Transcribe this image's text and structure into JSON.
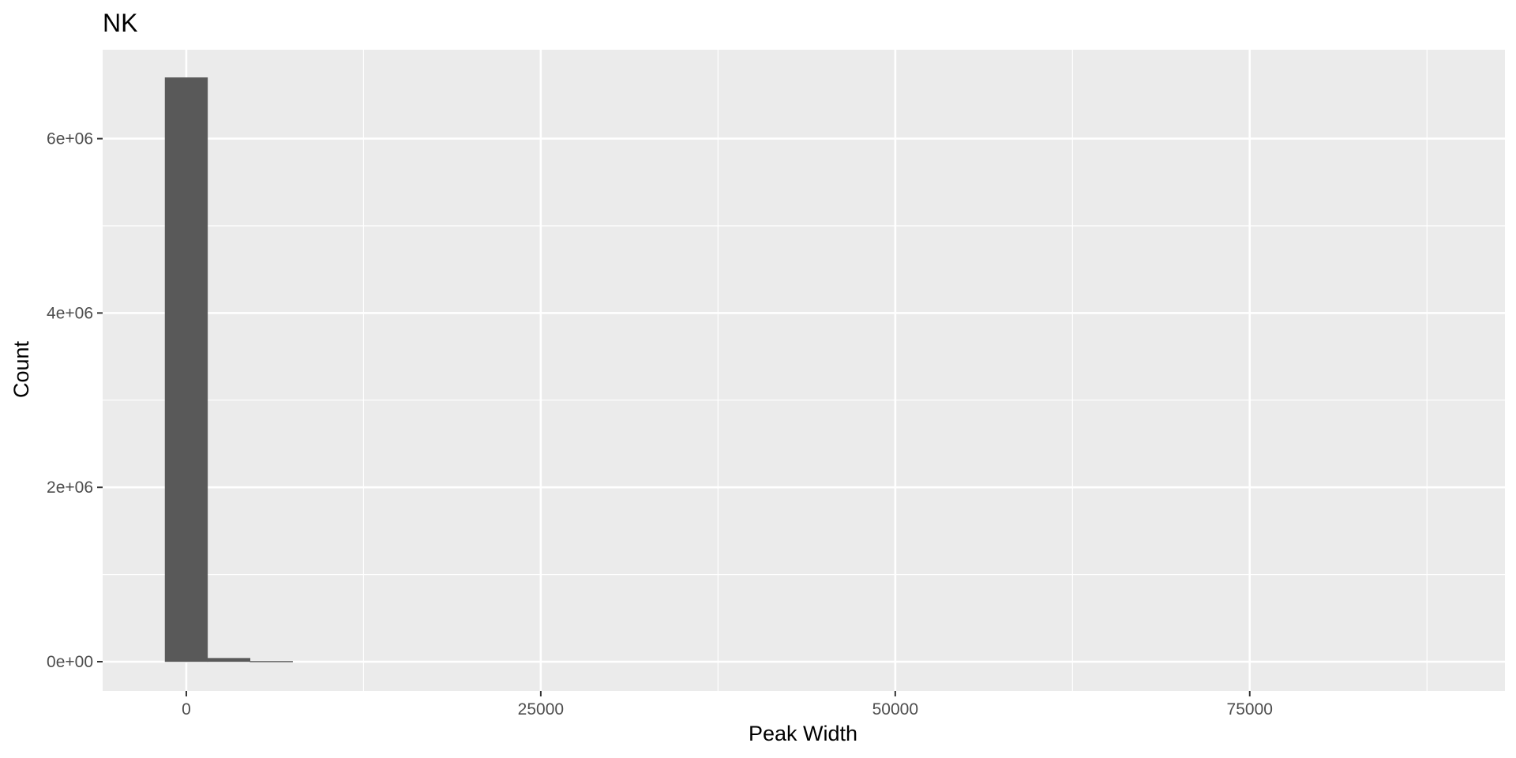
{
  "chart_data": {
    "type": "bar",
    "title": "NK",
    "xlabel": "Peak Width",
    "ylabel": "Count",
    "x_ticks": [
      {
        "value": 0,
        "label": "0"
      },
      {
        "value": 25000,
        "label": "25000"
      },
      {
        "value": 50000,
        "label": "50000"
      },
      {
        "value": 75000,
        "label": "75000"
      }
    ],
    "y_ticks": [
      {
        "value": 0,
        "label": "0e+00"
      },
      {
        "value": 2000000,
        "label": "2e+06"
      },
      {
        "value": 4000000,
        "label": "4e+06"
      },
      {
        "value": 6000000,
        "label": "6e+06"
      }
    ],
    "xlim": [
      -5900,
      93000
    ],
    "ylim": [
      -335000,
      7020000
    ],
    "grid": true,
    "bins": [
      {
        "x_start": -1500,
        "x_end": 1500,
        "count": 6700000
      },
      {
        "x_start": 1500,
        "x_end": 4500,
        "count": 40000
      },
      {
        "x_start": 4500,
        "x_end": 7500,
        "count": 5000
      }
    ],
    "colors": {
      "panel": "#ebebeb",
      "grid": "#ffffff",
      "bar_fill": "#595959",
      "tick_text": "#4d4d4d",
      "tick_mark": "#333333"
    }
  }
}
